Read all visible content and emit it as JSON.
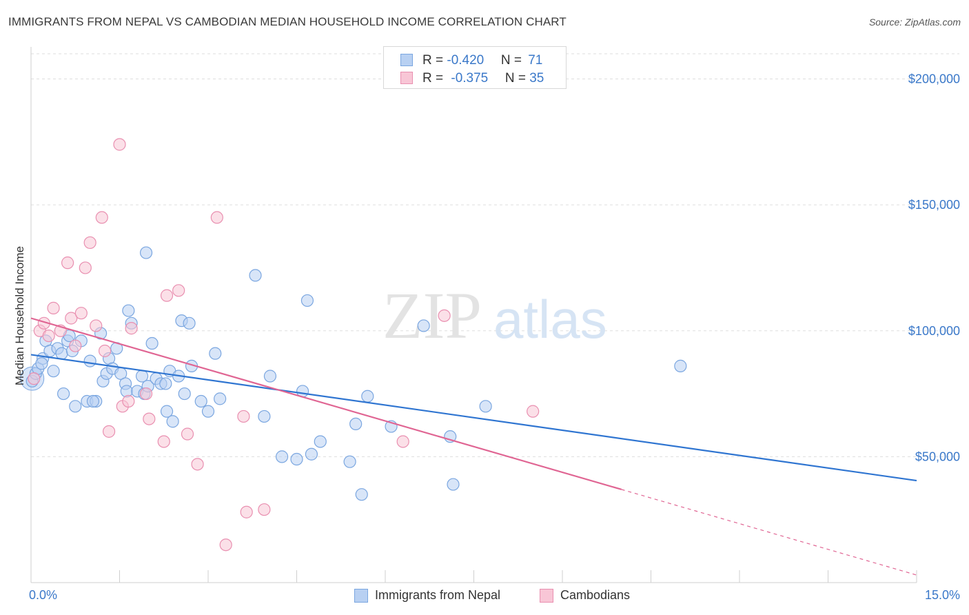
{
  "title": "IMMIGRANTS FROM NEPAL VS CAMBODIAN MEDIAN HOUSEHOLD INCOME CORRELATION CHART",
  "source": "Source: ZipAtlas.com",
  "watermark": {
    "zip": "ZIP",
    "atlas": "atlas"
  },
  "legend_top": {
    "rows": [
      {
        "r_label": "R = ",
        "r_value": "-0.420",
        "n_label": "N = ",
        "n_value": "71"
      },
      {
        "r_label": "R = ",
        "r_value": "-0.375",
        "n_label": "N = ",
        "n_value": "35"
      }
    ]
  },
  "legend_bottom": {
    "nepal": "Immigrants from Nepal",
    "cambodians": "Cambodians"
  },
  "colors": {
    "nepal_fill": "#b8d0f2",
    "nepal_stroke": "#7aa6e0",
    "nepal_line": "#2f75d1",
    "camb_fill": "#f8c6d6",
    "camb_stroke": "#e98fb0",
    "camb_line": "#e06593",
    "grid": "#dddddd",
    "axis_text": "#3a78c9"
  },
  "chart_data": {
    "type": "scatter",
    "title": "IMMIGRANTS FROM NEPAL VS CAMBODIAN MEDIAN HOUSEHOLD INCOME CORRELATION CHART",
    "xlabel": "",
    "ylabel": "Median Household Income",
    "xlim": [
      0,
      15
    ],
    "ylim": [
      0,
      210000
    ],
    "x_tick_labels": [
      "0.0%",
      "15.0%"
    ],
    "y_ticks": [
      50000,
      100000,
      150000,
      200000
    ],
    "y_tick_labels": [
      "$50,000",
      "$100,000",
      "$150,000",
      "$200,000"
    ],
    "grid": true,
    "legend_position": "top-center",
    "series": [
      {
        "name": "Immigrants from Nepal",
        "points": [
          [
            0.02,
            80000
          ],
          [
            0.08,
            83000
          ],
          [
            0.12,
            85000
          ],
          [
            0.2,
            89000
          ],
          [
            0.25,
            96000
          ],
          [
            0.32,
            92000
          ],
          [
            0.38,
            84000
          ],
          [
            0.45,
            93000
          ],
          [
            0.52,
            91000
          ],
          [
            0.62,
            96000
          ],
          [
            0.65,
            98000
          ],
          [
            0.7,
            92000
          ],
          [
            0.75,
            70000
          ],
          [
            0.85,
            96000
          ],
          [
            0.95,
            72000
          ],
          [
            1.0,
            88000
          ],
          [
            1.1,
            72000
          ],
          [
            1.18,
            99000
          ],
          [
            1.22,
            80000
          ],
          [
            1.28,
            83000
          ],
          [
            1.32,
            89000
          ],
          [
            1.38,
            85000
          ],
          [
            1.45,
            93000
          ],
          [
            1.52,
            83000
          ],
          [
            1.6,
            79000
          ],
          [
            1.62,
            76000
          ],
          [
            1.65,
            108000
          ],
          [
            1.7,
            103000
          ],
          [
            1.8,
            76000
          ],
          [
            1.88,
            82000
          ],
          [
            1.92,
            75000
          ],
          [
            1.95,
            131000
          ],
          [
            1.98,
            78000
          ],
          [
            2.05,
            95000
          ],
          [
            2.12,
            81000
          ],
          [
            2.2,
            79000
          ],
          [
            2.28,
            79000
          ],
          [
            2.3,
            68000
          ],
          [
            2.35,
            84000
          ],
          [
            2.4,
            64000
          ],
          [
            2.5,
            82000
          ],
          [
            2.55,
            104000
          ],
          [
            2.6,
            75000
          ],
          [
            2.68,
            103000
          ],
          [
            2.72,
            86000
          ],
          [
            2.88,
            72000
          ],
          [
            3.0,
            68000
          ],
          [
            3.12,
            91000
          ],
          [
            3.2,
            73000
          ],
          [
            3.8,
            122000
          ],
          [
            3.95,
            66000
          ],
          [
            4.05,
            82000
          ],
          [
            4.25,
            50000
          ],
          [
            4.5,
            49000
          ],
          [
            4.6,
            76000
          ],
          [
            4.68,
            112000
          ],
          [
            4.75,
            51000
          ],
          [
            4.9,
            56000
          ],
          [
            5.4,
            48000
          ],
          [
            5.5,
            63000
          ],
          [
            5.6,
            35000
          ],
          [
            5.7,
            74000
          ],
          [
            6.1,
            62000
          ],
          [
            6.65,
            102000
          ],
          [
            7.1,
            58000
          ],
          [
            7.15,
            39000
          ],
          [
            7.7,
            70000
          ],
          [
            11.0,
            86000
          ],
          [
            0.18,
            87000
          ],
          [
            0.55,
            75000
          ],
          [
            1.05,
            72000
          ]
        ],
        "trend": {
          "x": [
            0,
            15
          ],
          "y": [
            90500,
            40500
          ],
          "style": "solid"
        }
      },
      {
        "name": "Cambodians",
        "points": [
          [
            0.05,
            81000
          ],
          [
            0.15,
            100000
          ],
          [
            0.22,
            103000
          ],
          [
            0.3,
            98000
          ],
          [
            0.38,
            109000
          ],
          [
            0.5,
            100000
          ],
          [
            0.62,
            127000
          ],
          [
            0.68,
            105000
          ],
          [
            0.75,
            94000
          ],
          [
            0.85,
            107000
          ],
          [
            0.92,
            125000
          ],
          [
            1.0,
            135000
          ],
          [
            1.1,
            102000
          ],
          [
            1.2,
            145000
          ],
          [
            1.25,
            92000
          ],
          [
            1.32,
            60000
          ],
          [
            1.5,
            174000
          ],
          [
            1.55,
            70000
          ],
          [
            1.65,
            72000
          ],
          [
            1.7,
            101000
          ],
          [
            1.95,
            75000
          ],
          [
            2.0,
            65000
          ],
          [
            2.25,
            56000
          ],
          [
            2.3,
            114000
          ],
          [
            2.5,
            116000
          ],
          [
            2.65,
            59000
          ],
          [
            2.82,
            47000
          ],
          [
            3.15,
            145000
          ],
          [
            3.3,
            15000
          ],
          [
            3.6,
            66000
          ],
          [
            3.65,
            28000
          ],
          [
            3.95,
            29000
          ],
          [
            6.3,
            56000
          ],
          [
            7.0,
            106000
          ],
          [
            8.5,
            68000
          ]
        ],
        "trend": {
          "x": [
            0,
            10
          ],
          "y": [
            105000,
            37000
          ],
          "style": "solid",
          "extension": {
            "x": [
              10,
              15
            ],
            "y": [
              37000,
              3000
            ],
            "style": "dashed"
          }
        }
      }
    ]
  }
}
